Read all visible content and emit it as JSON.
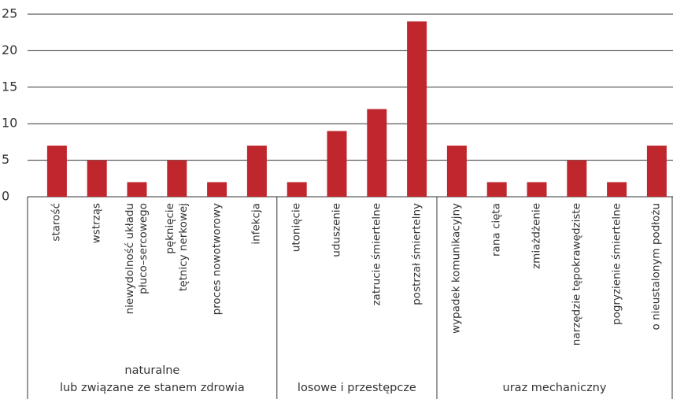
{
  "chart_data": {
    "type": "bar",
    "categories": [
      "starość",
      "wstrząs",
      "niewydolność układu\npłuco–sercowego",
      "pęknięcie\ntętnicy nerkowej",
      "proces nowotworowy",
      "infekcja",
      "utonięcie",
      "uduszenie",
      "zatrucie śmiertelne",
      "postrzał śmiertelny",
      "wypadek komunikacyjny",
      "rana cięta",
      "zmiażdżenie",
      "narzędzie tępokrawędziste",
      "pogryzienie śmiertelne",
      "o nieustalonym podłożu"
    ],
    "values": [
      7,
      5,
      2,
      5,
      2,
      7,
      2,
      9,
      12,
      24,
      7,
      2,
      2,
      5,
      2,
      7
    ],
    "groups": [
      {
        "label": "naturalne\nlub związane ze stanem zdrowia",
        "size": 6
      },
      {
        "label": "losowe i przestępcze",
        "size": 4
      },
      {
        "label": "uraz mechaniczny",
        "size": 6
      }
    ],
    "color": "#c0272d",
    "ylim": [
      0,
      25
    ],
    "yticks": [
      0,
      5,
      10,
      15,
      20,
      25
    ],
    "grid": true
  }
}
